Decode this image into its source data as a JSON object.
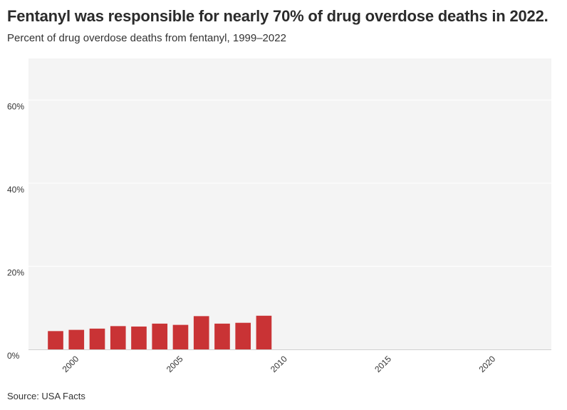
{
  "title": "Fentanyl was responsible for nearly 70% of drug overdose deaths in 2022.",
  "subtitle": "Percent of drug overdose deaths from fentanyl, 1999–2022",
  "source": "Source: USA Facts",
  "colors": {
    "bar": "#c93335",
    "plot_background": "#f4f4f4",
    "grid": "#ffffff"
  },
  "chart_data": {
    "type": "bar",
    "title": "Fentanyl was responsible for nearly 70% of drug overdose deaths in 2022.",
    "subtitle": "Percent of drug overdose deaths from fentanyl, 1999–2022",
    "xlabel": "",
    "ylabel": "",
    "x": [
      1999,
      2000,
      2001,
      2002,
      2003,
      2004,
      2005,
      2006,
      2007,
      2008,
      2009
    ],
    "values": [
      4.4,
      4.7,
      5.0,
      5.6,
      5.5,
      6.2,
      5.9,
      8.0,
      6.2,
      6.4,
      8.1
    ],
    "xlim": [
      1997.7,
      2022.8
    ],
    "ylim": [
      0,
      70
    ],
    "x_ticks": [
      2000,
      2005,
      2010,
      2015,
      2020
    ],
    "y_ticks": [
      {
        "value": 0,
        "label": "0%"
      },
      {
        "value": 20,
        "label": "20%"
      },
      {
        "value": 40,
        "label": "40%"
      },
      {
        "value": 60,
        "label": "60%"
      }
    ],
    "grid": true
  }
}
